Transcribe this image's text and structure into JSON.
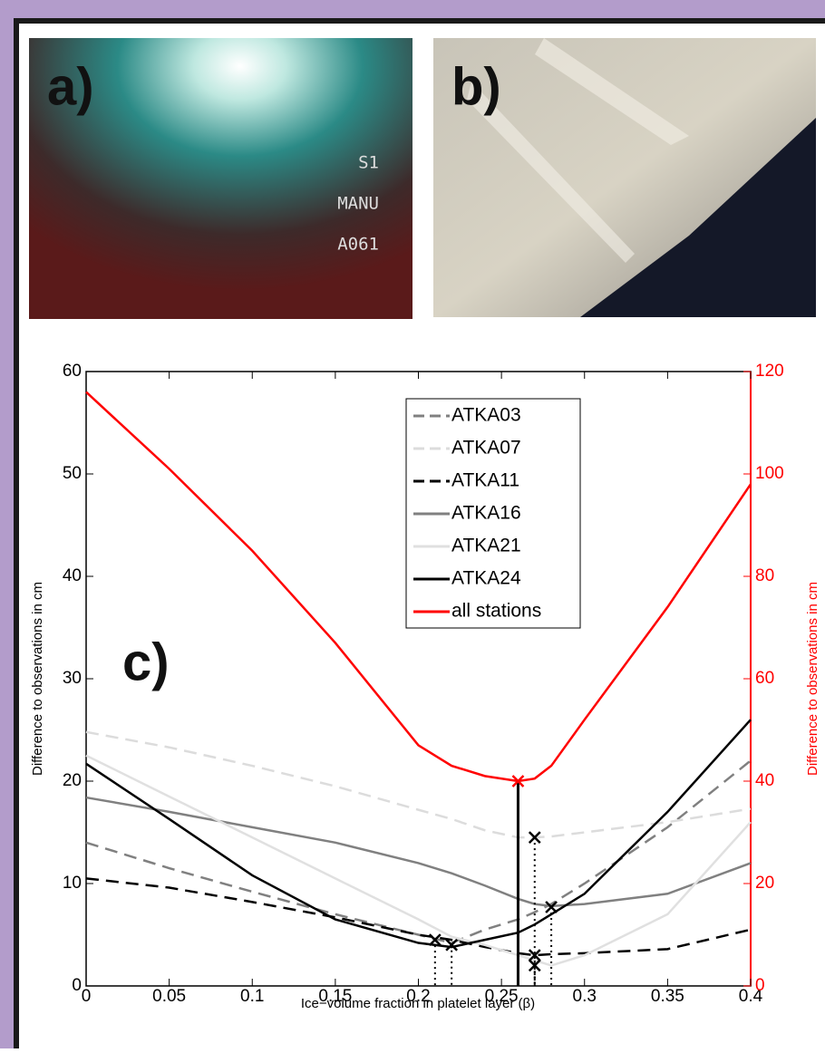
{
  "panels": {
    "a": {
      "label": "a)",
      "overlay": [
        "S1",
        "MANU",
        "A061"
      ]
    },
    "b": {
      "label": "b)"
    }
  },
  "chart_data": {
    "type": "line",
    "panel_label": "c)",
    "xlabel": "Ice−volume fraction in platelet layer (β)",
    "ylabel": "Difference to observations in cm",
    "y2label": "Difference to observations in cm",
    "x": [
      0,
      0.05,
      0.1,
      0.15,
      0.2,
      0.22,
      0.24,
      0.26,
      0.27,
      0.28,
      0.3,
      0.35,
      0.4
    ],
    "series": [
      {
        "name": "ATKA03",
        "color": "#808080",
        "style": "dashed",
        "values": [
          14,
          11.5,
          9.2,
          7,
          5,
          4.2,
          5.5,
          6.5,
          7.2,
          8,
          10,
          15.5,
          22
        ]
      },
      {
        "name": "ATKA07",
        "color": "#dcdcdc",
        "style": "dashed",
        "values": [
          24.8,
          23.3,
          21.5,
          19.5,
          17.2,
          16.3,
          15.2,
          14.5,
          14.5,
          14.6,
          15,
          16,
          17.3
        ]
      },
      {
        "name": "ATKA11",
        "color": "#000000",
        "style": "dashed",
        "values": [
          10.5,
          9.6,
          8.2,
          6.7,
          5,
          4.5,
          3.8,
          3.2,
          3,
          3.1,
          3.2,
          3.6,
          5.5
        ]
      },
      {
        "name": "ATKA16",
        "color": "#808080",
        "style": "solid",
        "values": [
          18.4,
          17,
          15.5,
          14,
          12,
          11,
          9.8,
          8.5,
          8,
          7.8,
          8,
          9,
          12
        ]
      },
      {
        "name": "ATKA21",
        "color": "#e0e0e0",
        "style": "solid",
        "values": [
          22.5,
          18.5,
          14.5,
          10.5,
          6.5,
          4.8,
          4,
          3,
          2.5,
          2,
          3,
          7,
          16
        ]
      },
      {
        "name": "ATKA24",
        "color": "#000000",
        "style": "solid",
        "values": [
          21.7,
          16.3,
          10.8,
          6.5,
          4.2,
          3.8,
          4.5,
          5.2,
          6,
          7,
          9,
          17,
          26
        ]
      },
      {
        "name": "all stations",
        "color": "#ff0000",
        "style": "solid",
        "axis": "y2",
        "values": [
          116,
          101,
          85,
          67,
          47,
          43,
          41,
          40,
          40.5,
          43,
          52,
          74,
          98
        ]
      }
    ],
    "minima": {
      "x": [
        0.21,
        0.22,
        0.27,
        0.27,
        0.27,
        0.28
      ],
      "y": [
        4.5,
        4,
        14.5,
        3,
        2,
        7.7
      ]
    },
    "overall_minimum": {
      "x": 0.26,
      "y2": 40
    },
    "xlim": [
      0,
      0.4
    ],
    "xticks": [
      0,
      0.05,
      0.1,
      0.15,
      0.2,
      0.25,
      0.3,
      0.35,
      0.4
    ],
    "ylim": [
      0,
      60
    ],
    "yticks": [
      0,
      10,
      20,
      30,
      40,
      50,
      60
    ],
    "y2lim": [
      0,
      120
    ],
    "y2ticks": [
      0,
      20,
      40,
      60,
      80,
      100,
      120
    ],
    "y2color": "#ff0000"
  }
}
